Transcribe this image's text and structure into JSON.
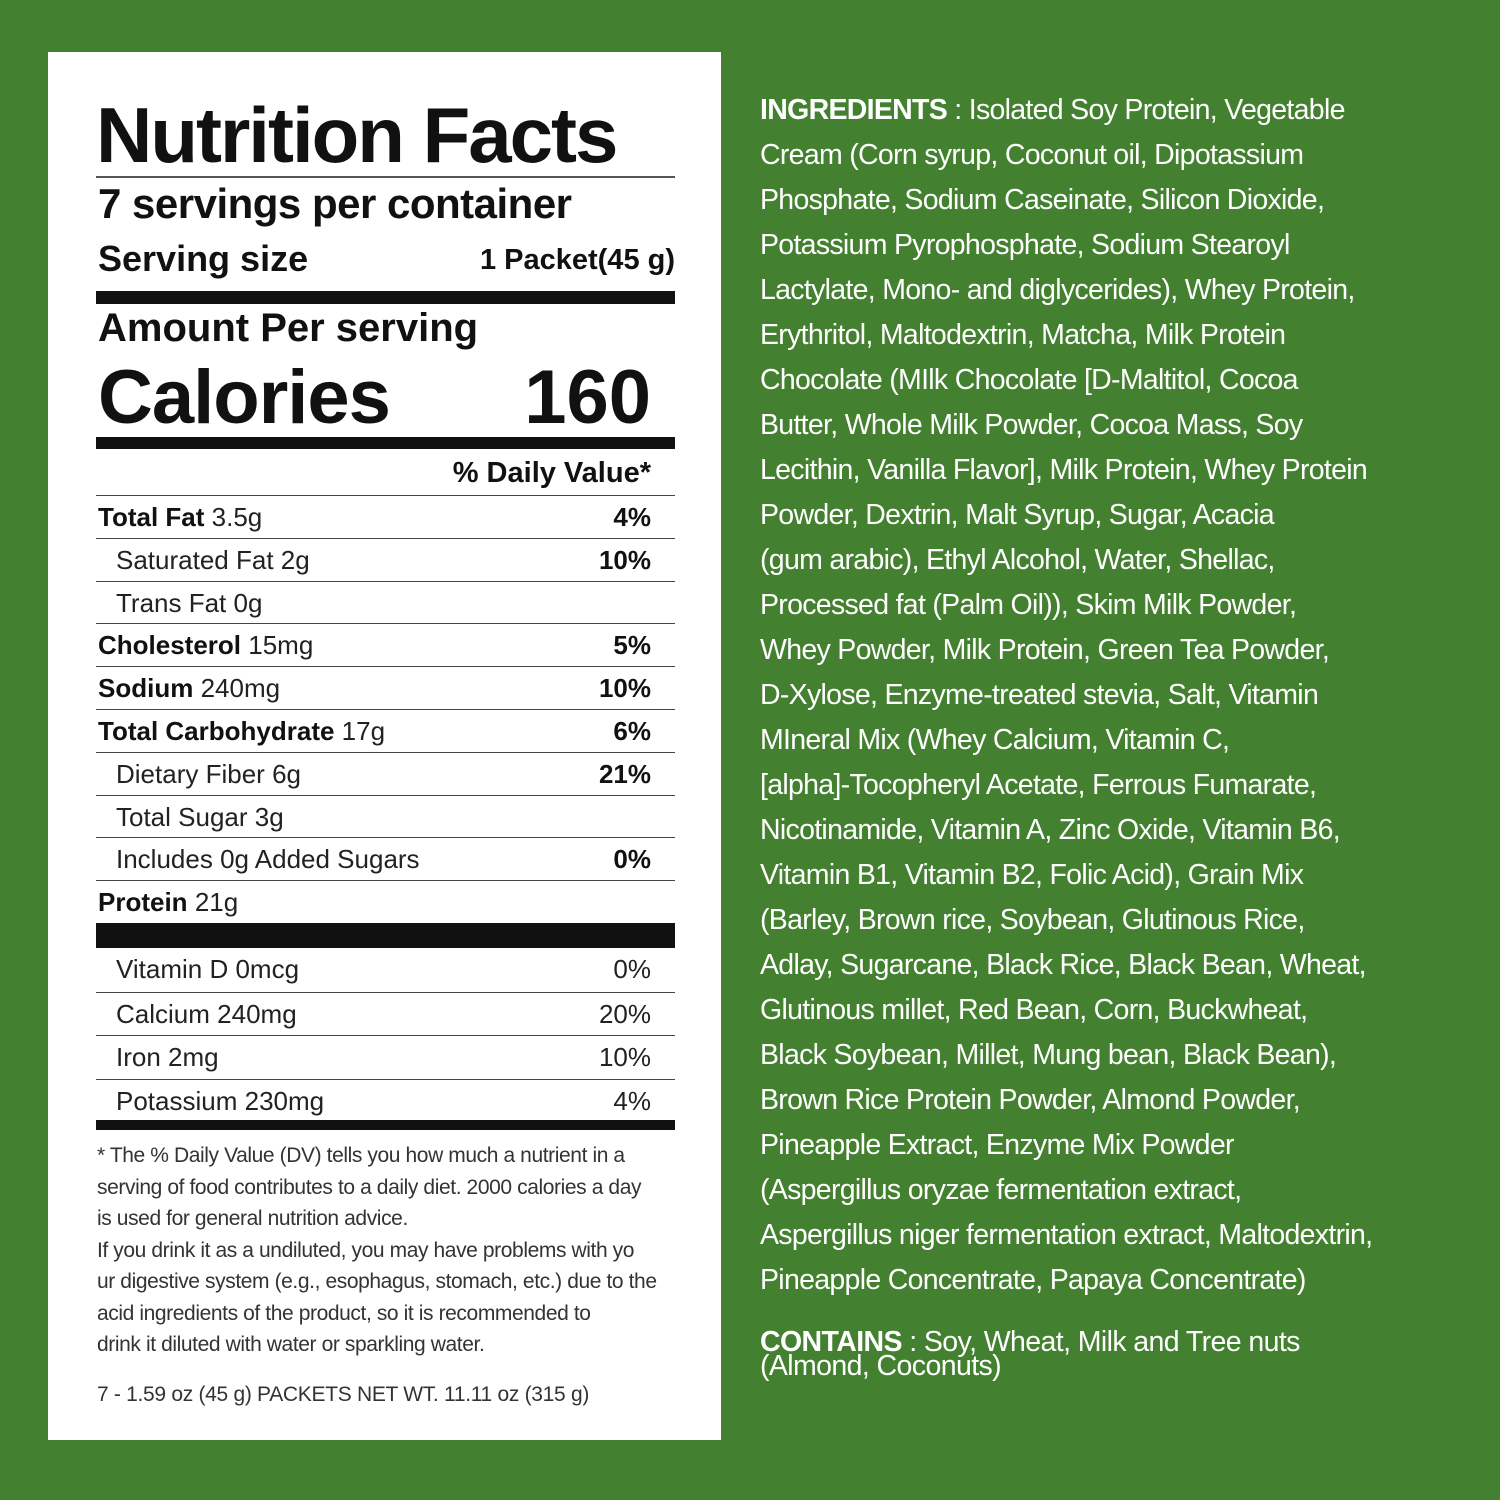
{
  "colors": {
    "background": "#43802f",
    "label_bg": "#ffffff",
    "text": "#111111"
  },
  "label": {
    "title": "Nutrition Facts",
    "servings": "7 servings per container",
    "serving_size_label": "Serving size",
    "serving_size_value": "1 Packet(45 g)",
    "amount_per": "Amount Per serving",
    "calories_label": "Calories",
    "calories_value": "160",
    "dv_header": "% Daily Value*",
    "nutrients": [
      {
        "name": "Total Fat",
        "amount": "3.5g",
        "dv": "4%",
        "bold": true,
        "indent": false
      },
      {
        "name": "Saturated Fat",
        "amount": "2g",
        "dv": "10%",
        "bold": false,
        "indent": true
      },
      {
        "name": "Trans Fat",
        "amount": "0g",
        "dv": "",
        "bold": false,
        "indent": true
      },
      {
        "name": "Cholesterol",
        "amount": "15mg",
        "dv": "5%",
        "bold": true,
        "indent": false
      },
      {
        "name": "Sodium",
        "amount": "240mg",
        "dv": "10%",
        "bold": true,
        "indent": false
      },
      {
        "name": "Total Carbohydrate",
        "amount": "17g",
        "dv": "6%",
        "bold": true,
        "indent": false
      },
      {
        "name": "Dietary Fiber",
        "amount": "6g",
        "dv": "21%",
        "bold": false,
        "indent": true
      },
      {
        "name": "Total Sugar",
        "amount": "3g",
        "dv": "",
        "bold": false,
        "indent": true
      },
      {
        "name": "Includes 0g Added Sugars",
        "amount": "",
        "dv": "0%",
        "bold": false,
        "indent": true
      },
      {
        "name": "Protein",
        "amount": "21g",
        "dv": "",
        "bold": true,
        "indent": false
      }
    ],
    "vitamins": [
      {
        "name": "Vitamin D",
        "amount": "0mcg",
        "dv": "0%"
      },
      {
        "name": "Calcium",
        "amount": "240mg",
        "dv": "20%"
      },
      {
        "name": "Iron",
        "amount": "2mg",
        "dv": "10%"
      },
      {
        "name": "Potassium",
        "amount": "230mg",
        "dv": "4%"
      }
    ],
    "footnote_lines": [
      "* The % Daily Value (DV) tells you how much a nutrient in a",
      "serving of food contributes to a daily diet. 2000 calories a day",
      "is used for general nutrition advice.",
      "If you drink it as a undiluted, you may have problems with yo",
      "ur digestive system (e.g., esophagus, stomach, etc.) due to the",
      "acid ingredients of the product, so it is recommended to",
      "drink it diluted with water or sparkling water."
    ],
    "net_weight": "7 - 1.59 oz (45 g) PACKETS NET WT. 11.11 oz (315 g)"
  },
  "ingredients": {
    "heading": "INGREDIENTS",
    "separator": " : ",
    "lines": [
      "Isolated Soy Protein, Vegetable",
      "Cream (Corn syrup, Coconut oil, Dipotassium",
      "Phosphate, Sodium Caseinate, Silicon Dioxide,",
      "Potassium Pyrophosphate, Sodium Stearoyl",
      "Lactylate, Mono- and diglycerides), Whey Protein,",
      "Erythritol, Maltodextrin, Matcha, Milk Protein",
      "Chocolate (MIlk Chocolate [D-Maltitol, Cocoa",
      "Butter, Whole Milk Powder, Cocoa Mass, Soy",
      "Lecithin, Vanilla Flavor], Milk Protein, Whey Protein",
      "Powder, Dextrin, Malt Syrup, Sugar, Acacia",
      "(gum arabic), Ethyl Alcohol, Water, Shellac,",
      "Processed fat (Palm Oil)), Skim Milk Powder,",
      "Whey Powder, Milk Protein, Green Tea Powder,",
      "D-Xylose, Enzyme-treated stevia, Salt, Vitamin",
      "MIneral Mix (Whey Calcium, Vitamin C,",
      "[alpha]-Tocopheryl Acetate, Ferrous Fumarate,",
      "Nicotinamide, Vitamin A, Zinc Oxide, Vitamin B6,",
      "Vitamin B1, Vitamin B2, Folic Acid), Grain Mix",
      "(Barley, Brown rice, Soybean, Glutinous Rice,",
      "Adlay, Sugarcane, Black Rice, Black Bean, Wheat,",
      "Glutinous millet, Red Bean, Corn, Buckwheat,",
      "Black Soybean, Millet, Mung bean, Black Bean),",
      "Brown Rice Protein Powder, Almond Powder,",
      "Pineapple Extract, Enzyme Mix Powder",
      "(Aspergillus oryzae fermentation extract,",
      "Aspergillus niger fermentation extract, Maltodextrin,",
      "Pineapple Concentrate, Papaya Concentrate)"
    ]
  },
  "contains": {
    "heading": "CONTAINS",
    "separator": " : ",
    "lines": [
      "Soy, Wheat, Milk and Tree nuts",
      "(Almond, Coconuts)"
    ]
  }
}
